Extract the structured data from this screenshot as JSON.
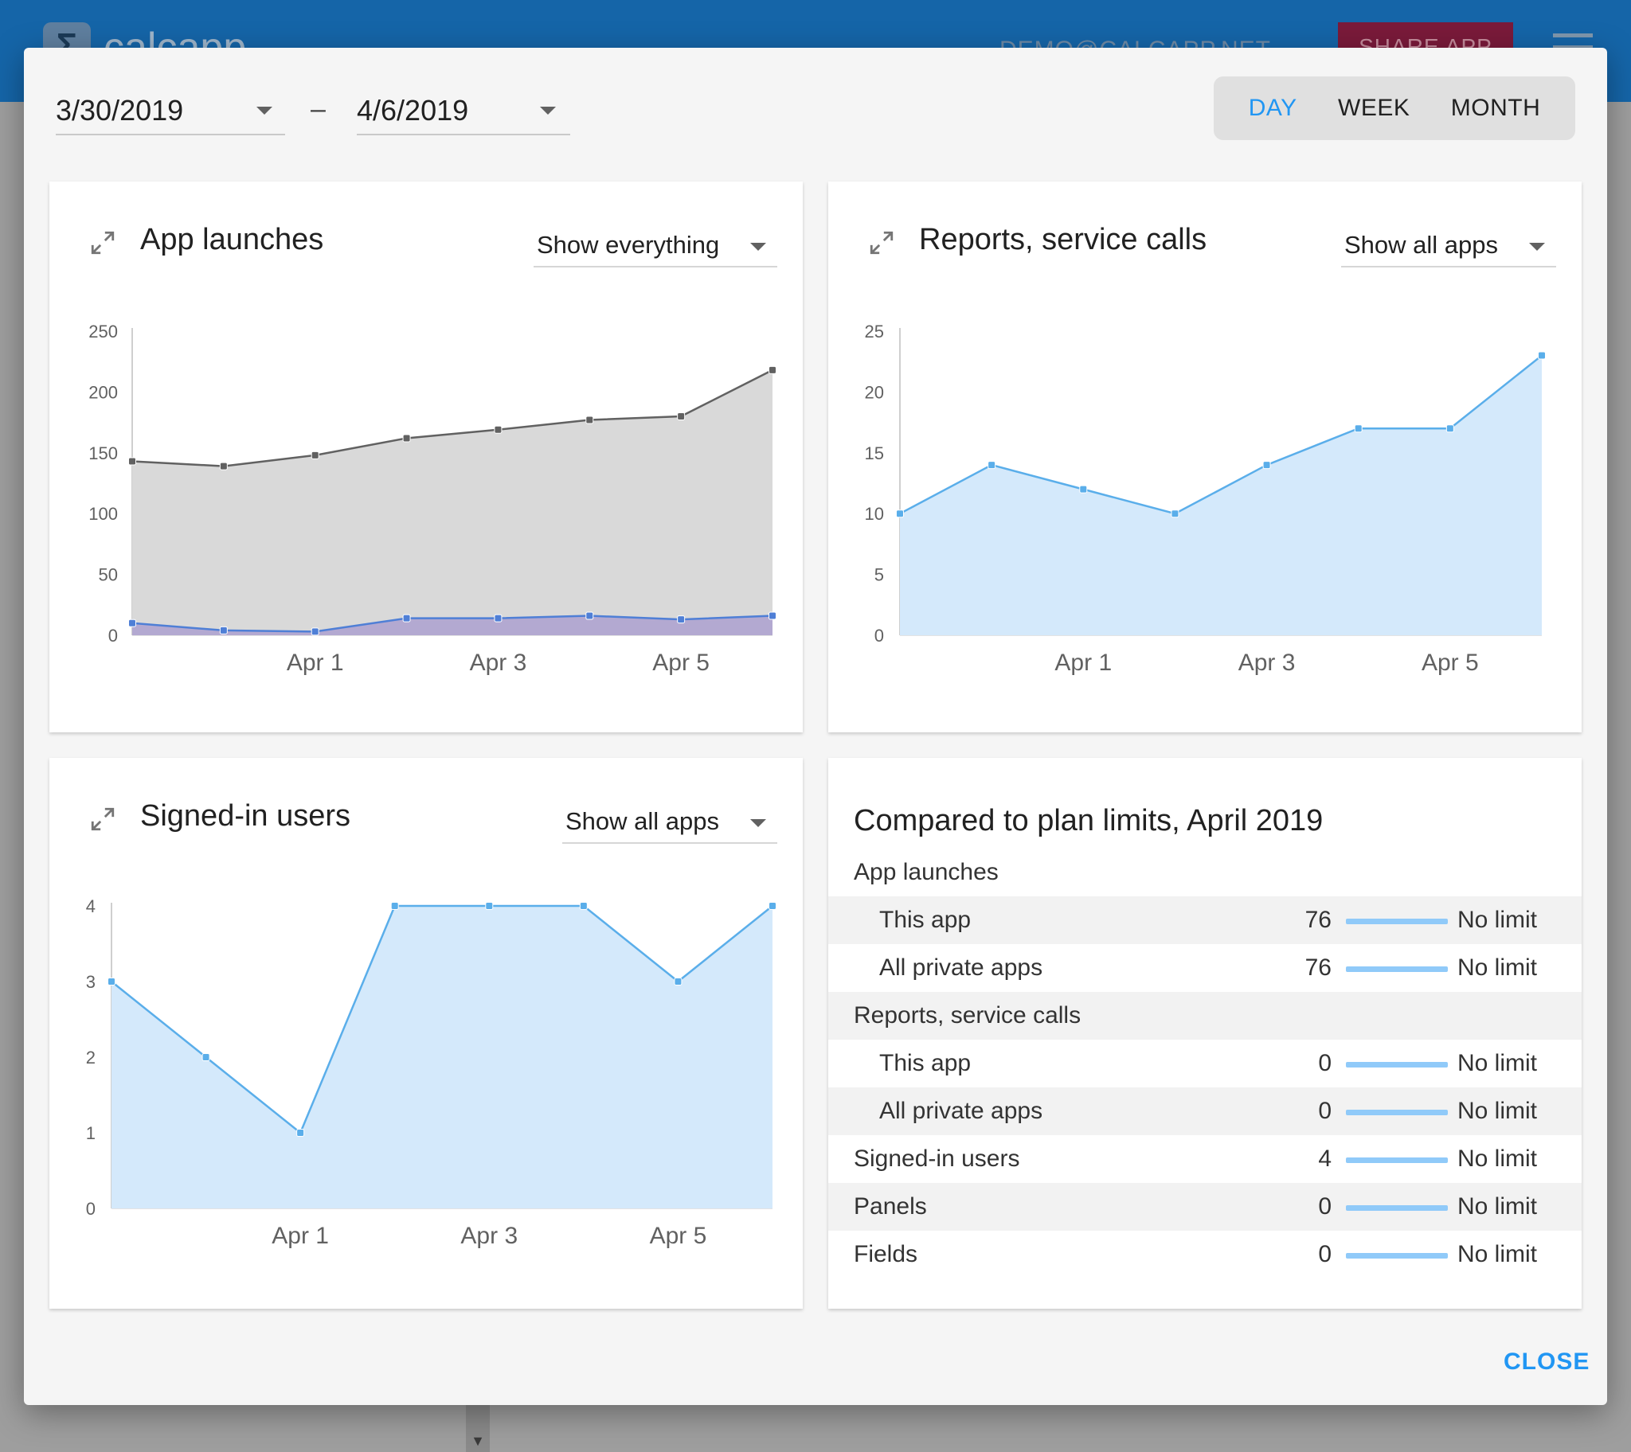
{
  "background": {
    "logo_text": "calcapp",
    "user_email": "DEMO@CALCAPP.NET",
    "share_label": "SHARE APP"
  },
  "dialog": {
    "start_date": "3/30/2019",
    "end_date": "4/6/2019",
    "date_separator": "–",
    "granularity": [
      {
        "label": "DAY",
        "active": true
      },
      {
        "label": "WEEK",
        "active": false
      },
      {
        "label": "MONTH",
        "active": false
      }
    ],
    "close_label": "CLOSE"
  },
  "app_launches": {
    "title": "App launches",
    "filter": "Show everything"
  },
  "reports": {
    "title": "Reports, service calls",
    "filter": "Show all apps"
  },
  "users": {
    "title": "Signed-in users",
    "filter": "Show all apps"
  },
  "limits": {
    "title": "Compared to plan limits, April 2019",
    "rows": [
      {
        "label": "App launches",
        "type": "header"
      },
      {
        "label": "This app",
        "type": "item",
        "indent": true,
        "value": "76",
        "limit": "No limit"
      },
      {
        "label": "All private apps",
        "type": "item",
        "indent": true,
        "value": "76",
        "limit": "No limit"
      },
      {
        "label": "Reports, service calls",
        "type": "header"
      },
      {
        "label": "This app",
        "type": "item",
        "indent": true,
        "value": "0",
        "limit": "No limit"
      },
      {
        "label": "All private apps",
        "type": "item",
        "indent": true,
        "value": "0",
        "limit": "No limit"
      },
      {
        "label": "Signed-in users",
        "type": "item",
        "indent": false,
        "value": "4",
        "limit": "No limit"
      },
      {
        "label": "Panels",
        "type": "item",
        "indent": false,
        "value": "0",
        "limit": "No limit"
      },
      {
        "label": "Fields",
        "type": "item",
        "indent": false,
        "value": "0",
        "limit": "No limit"
      }
    ]
  },
  "chart_data": [
    {
      "id": "launches",
      "type": "area",
      "x": [
        "2019-03-30",
        "2019-03-31",
        "2019-04-01",
        "2019-04-02",
        "2019-04-03",
        "2019-04-04",
        "2019-04-05",
        "2019-04-06"
      ],
      "x_tick_labels": [
        "",
        "",
        "Apr 1",
        "",
        "Apr 3",
        "",
        "Apr 5",
        ""
      ],
      "ylim": [
        0,
        250
      ],
      "y_ticks": [
        "0",
        "50",
        "100",
        "150",
        "200",
        "250"
      ],
      "series": [
        {
          "values": [
            143,
            139,
            148,
            162,
            169,
            177,
            180,
            218
          ],
          "color": "#616161",
          "fill": "#d9d9d9"
        },
        {
          "values": [
            10,
            4,
            3,
            14,
            14,
            16,
            13,
            16
          ],
          "color": "#4f7fd6",
          "fill": "#b3a9d1"
        }
      ]
    },
    {
      "id": "reports",
      "type": "area",
      "x": [
        "2019-03-30",
        "2019-03-31",
        "2019-04-01",
        "2019-04-02",
        "2019-04-03",
        "2019-04-04",
        "2019-04-05",
        "2019-04-06"
      ],
      "x_tick_labels": [
        "",
        "",
        "Apr 1",
        "",
        "Apr 3",
        "",
        "Apr 5",
        ""
      ],
      "ylim": [
        0,
        25
      ],
      "y_ticks": [
        "0",
        "5",
        "10",
        "15",
        "20",
        "25"
      ],
      "series": [
        {
          "values": [
            10,
            14,
            12,
            10,
            14,
            17,
            17,
            23
          ],
          "color": "#5aaeea",
          "fill": "#d4e9fb"
        }
      ]
    },
    {
      "id": "users",
      "type": "area",
      "x": [
        "2019-03-30",
        "2019-03-31",
        "2019-04-01",
        "2019-04-02",
        "2019-04-03",
        "2019-04-04",
        "2019-04-05",
        "2019-04-06"
      ],
      "x_tick_labels": [
        "",
        "",
        "Apr 1",
        "",
        "Apr 3",
        "",
        "Apr 5",
        ""
      ],
      "ylim": [
        0,
        4
      ],
      "y_ticks": [
        "0",
        "1",
        "2",
        "3",
        "4"
      ],
      "series": [
        {
          "values": [
            3,
            2,
            1,
            4,
            4,
            4,
            3,
            4
          ],
          "color": "#5aaeea",
          "fill": "#d4e9fb"
        }
      ]
    }
  ]
}
